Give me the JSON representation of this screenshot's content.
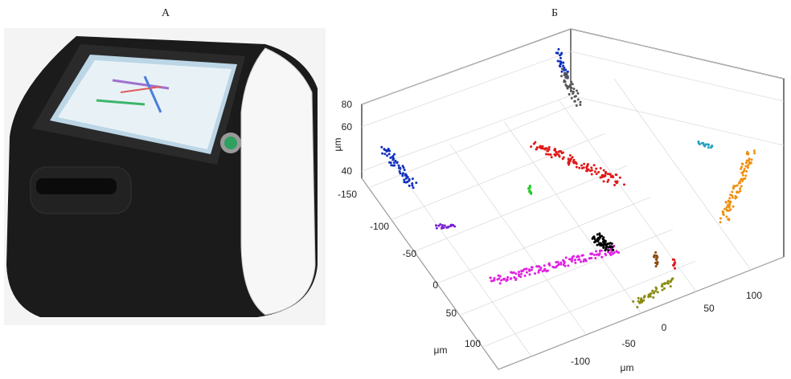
{
  "panels": [
    {
      "label": "А"
    },
    {
      "label": "Б",
      "axes": {
        "z_label": "μm",
        "z_ticks": [
          "80",
          "60",
          "40"
        ],
        "y_label": "μm",
        "y_ticks": [
          "-150",
          "-100",
          "-50",
          "0",
          "50",
          "100"
        ],
        "x_label": "μm",
        "x_ticks": [
          "-100",
          "-50",
          "0",
          "50",
          "100"
        ]
      }
    }
  ]
}
